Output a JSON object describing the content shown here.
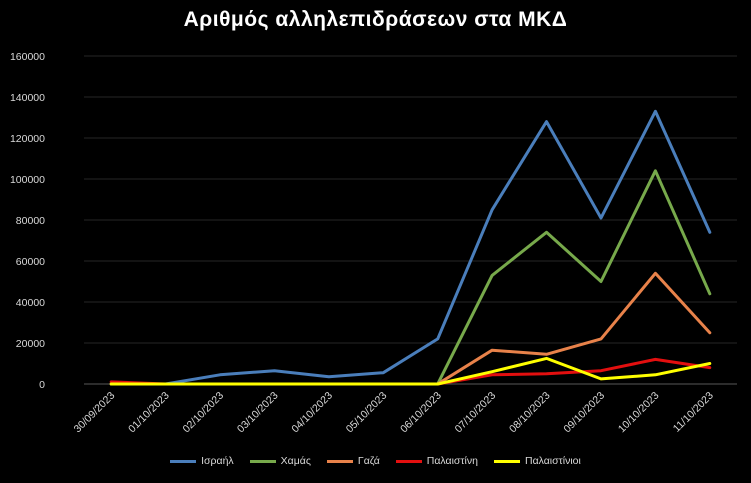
{
  "chart_data": {
    "type": "line",
    "title": "Αριθμός αλληλεπιδράσεων στα ΜΚΔ",
    "categories": [
      "30/09/2023",
      "01/10/2023",
      "02/10/2023",
      "03/10/2023",
      "04/10/2023",
      "05/10/2023",
      "06/10/2023",
      "07/10/2023",
      "08/10/2023",
      "09/10/2023",
      "10/10/2023",
      "11/10/2023"
    ],
    "ylim": [
      0,
      160000
    ],
    "yticks": [
      "0",
      "20000",
      "40000",
      "60000",
      "80000",
      "100000",
      "120000",
      "140000",
      "160000"
    ],
    "grid": true,
    "legend_position": "bottom",
    "series": [
      {
        "name": "Ισραήλ",
        "color": "#4a7ebb",
        "values": [
          0,
          0,
          4500,
          6500,
          3500,
          5500,
          22000,
          85000,
          128000,
          81000,
          133000,
          74000
        ]
      },
      {
        "name": "Χαμάς",
        "color": "#77a94b",
        "values": [
          0,
          0,
          0,
          0,
          0,
          0,
          0,
          53000,
          74000,
          50000,
          104000,
          44000
        ]
      },
      {
        "name": "Γαζά",
        "color": "#e8824a",
        "values": [
          0,
          0,
          0,
          0,
          0,
          0,
          0,
          16500,
          14500,
          22000,
          54000,
          25000
        ]
      },
      {
        "name": "Παλαιστίνη",
        "color": "#e30f0f",
        "values": [
          1000,
          0,
          0,
          0,
          0,
          0,
          0,
          4500,
          5000,
          6500,
          12000,
          8000
        ]
      },
      {
        "name": "Παλαιστίνιοι",
        "color": "#ffff00",
        "values": [
          0,
          0,
          0,
          0,
          0,
          0,
          0,
          6000,
          12500,
          2500,
          4500,
          10000
        ]
      }
    ]
  }
}
